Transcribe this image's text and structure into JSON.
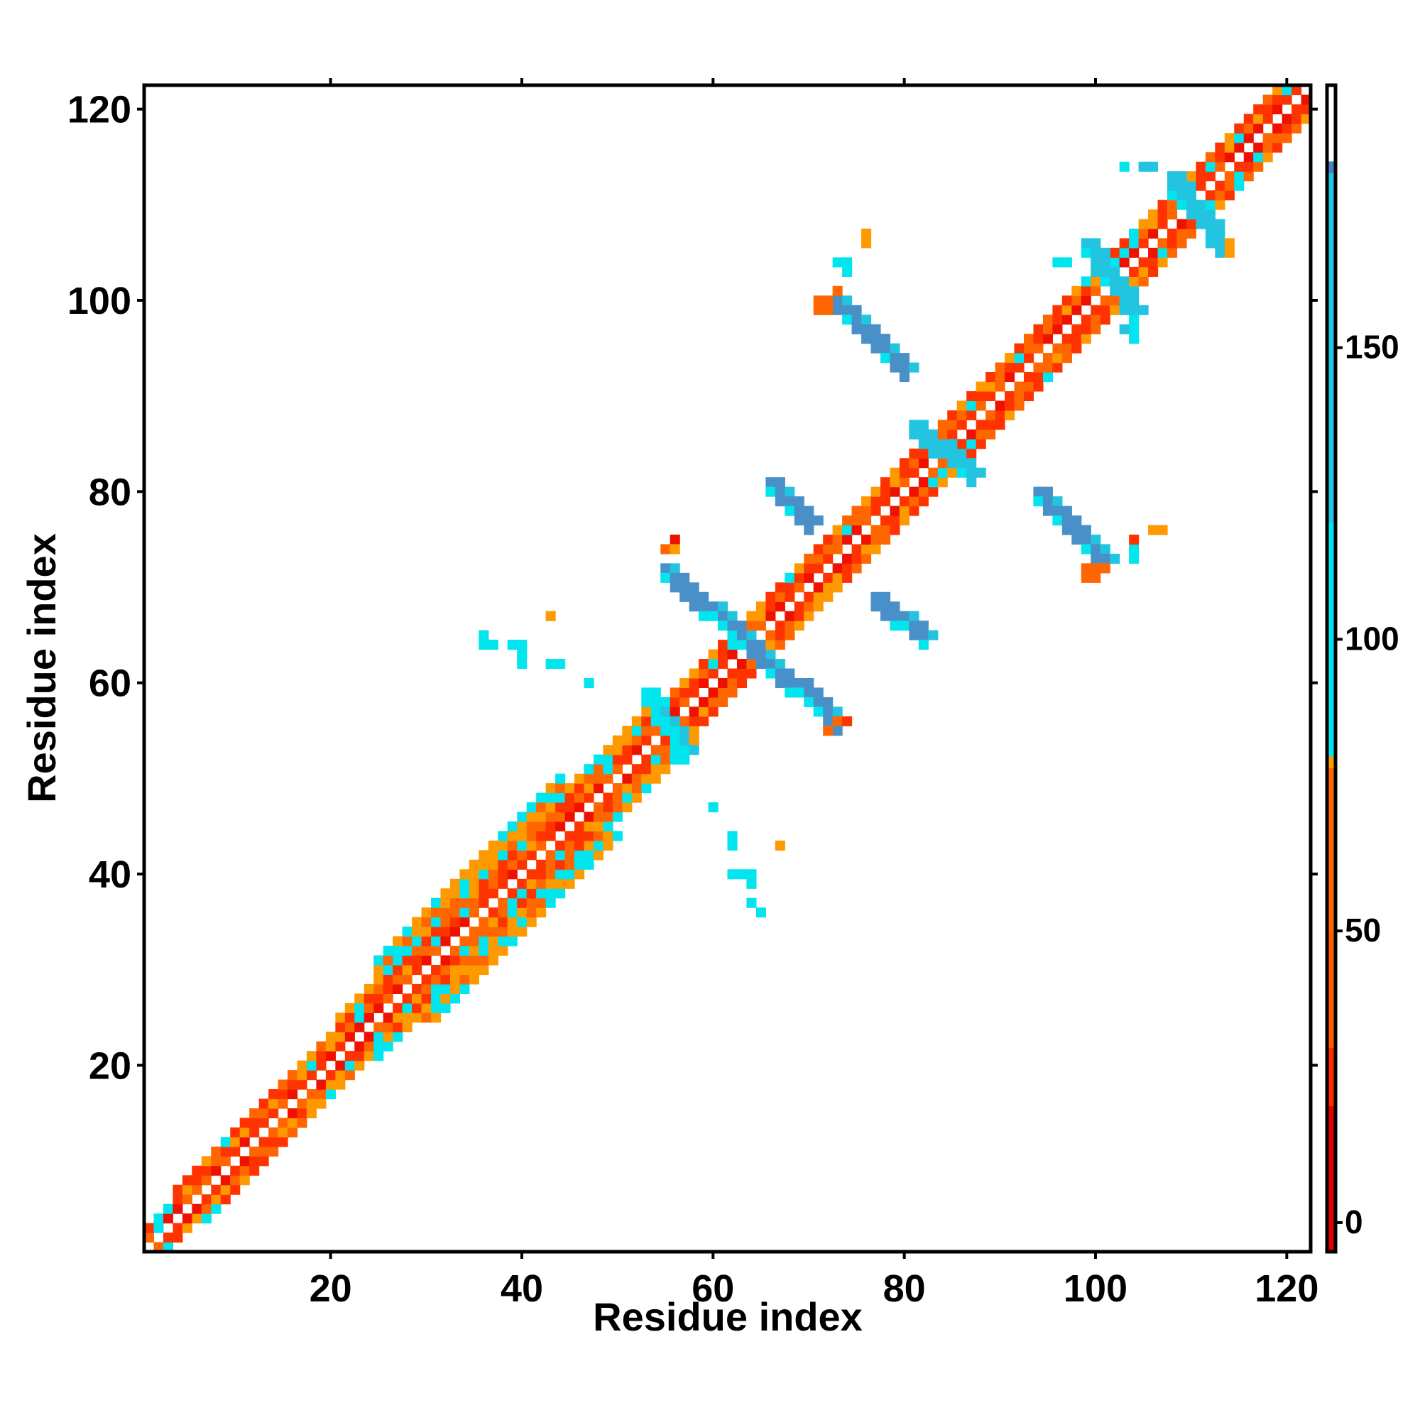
{
  "chart_data": {
    "type": "heatmap",
    "title": "",
    "xlabel": "Residue index",
    "ylabel": "Residue index",
    "xlim": [
      1,
      122
    ],
    "ylim": [
      1,
      122
    ],
    "x_ticks": [
      20,
      40,
      60,
      80,
      100,
      120
    ],
    "y_ticks": [
      20,
      40,
      60,
      80,
      100,
      120
    ],
    "colorbar": {
      "ticks": [
        0,
        50,
        100,
        150
      ],
      "range": [
        -5,
        195
      ],
      "stops": [
        {
          "value": -5,
          "color": "#e00000"
        },
        {
          "value": 20,
          "color": "#ff2a00"
        },
        {
          "value": 30,
          "color": "#ff5a00"
        },
        {
          "value": 50,
          "color": "#ff6600"
        },
        {
          "value": 78,
          "color": "#ff9900"
        },
        {
          "value": 80,
          "color": "#00e5ee"
        },
        {
          "value": 120,
          "color": "#22c6e0"
        },
        {
          "value": 180,
          "color": "#4a7fc0"
        },
        {
          "value": 182,
          "color": "#ffffff"
        },
        {
          "value": 195,
          "color": "#ffffff"
        }
      ]
    },
    "palette": {
      "red": "#ee1100",
      "red_orange": "#ff3300",
      "orange": "#ff6600",
      "light_orange": "#ff9900",
      "cyan": "#00e5ee",
      "light_blue": "#22c4e0",
      "steel_blue": "#4a90c8"
    },
    "diagonal_bands": [
      {
        "from": 1,
        "to": 5,
        "half_width": 2
      },
      {
        "from": 5,
        "to": 22,
        "half_width": 3
      },
      {
        "from": 22,
        "to": 27,
        "half_width": 4
      },
      {
        "from": 27,
        "to": 47,
        "half_width": 6
      },
      {
        "from": 47,
        "to": 56,
        "half_width": 4
      },
      {
        "from": 56,
        "to": 122,
        "half_width": 3
      }
    ],
    "off_diagonal_features": [
      {
        "x": [
          55,
          64
        ],
        "y": [
          72,
          64
        ],
        "color": "steel_blue"
      },
      {
        "x": [
          65,
          73
        ],
        "y": [
          63,
          56
        ],
        "color": "steel_blue"
      },
      {
        "x": [
          66,
          70
        ],
        "y": [
          81,
          77
        ],
        "color": "steel_blue"
      },
      {
        "x": [
          77,
          82
        ],
        "y": [
          69,
          65
        ],
        "color": "steel_blue"
      },
      {
        "x": [
          94,
          101
        ],
        "y": [
          80,
          73
        ],
        "color": "steel_blue"
      },
      {
        "x": [
          73,
          80
        ],
        "y": [
          100,
          93
        ],
        "color": "steel_blue"
      },
      {
        "x": [
          81,
          87
        ],
        "y": [
          87,
          82
        ],
        "color": "light_blue"
      },
      {
        "x": [
          99,
          104
        ],
        "y": [
          106,
          99
        ],
        "color": "light_blue"
      },
      {
        "x": [
          108,
          113
        ],
        "y": [
          113,
          106
        ],
        "color": "light_blue"
      },
      {
        "x": [
          53,
          57
        ],
        "y": [
          59,
          53
        ],
        "color": "cyan"
      }
    ],
    "scatter_cells": [
      {
        "x": 36,
        "y": 65,
        "color": "cyan"
      },
      {
        "x": 36,
        "y": 64,
        "color": "cyan"
      },
      {
        "x": 37,
        "y": 64,
        "color": "cyan"
      },
      {
        "x": 39,
        "y": 64,
        "color": "cyan"
      },
      {
        "x": 40,
        "y": 64,
        "color": "cyan"
      },
      {
        "x": 40,
        "y": 63,
        "color": "cyan"
      },
      {
        "x": 40,
        "y": 62,
        "color": "cyan"
      },
      {
        "x": 43,
        "y": 62,
        "color": "cyan"
      },
      {
        "x": 44,
        "y": 62,
        "color": "cyan"
      },
      {
        "x": 43,
        "y": 67,
        "color": "light_orange"
      },
      {
        "x": 47,
        "y": 60,
        "color": "cyan"
      },
      {
        "x": 60,
        "y": 47,
        "color": "cyan"
      },
      {
        "x": 62,
        "y": 44,
        "color": "cyan"
      },
      {
        "x": 62,
        "y": 43,
        "color": "cyan"
      },
      {
        "x": 62,
        "y": 40,
        "color": "cyan"
      },
      {
        "x": 63,
        "y": 40,
        "color": "cyan"
      },
      {
        "x": 64,
        "y": 40,
        "color": "cyan"
      },
      {
        "x": 64,
        "y": 39,
        "color": "cyan"
      },
      {
        "x": 64,
        "y": 37,
        "color": "cyan"
      },
      {
        "x": 65,
        "y": 36,
        "color": "cyan"
      },
      {
        "x": 67,
        "y": 43,
        "color": "light_orange"
      },
      {
        "x": 56,
        "y": 75,
        "color": "red"
      },
      {
        "x": 55,
        "y": 74,
        "color": "orange"
      },
      {
        "x": 56,
        "y": 74,
        "color": "light_orange"
      },
      {
        "x": 74,
        "y": 56,
        "color": "red_orange"
      },
      {
        "x": 73,
        "y": 56,
        "color": "orange"
      },
      {
        "x": 72,
        "y": 55,
        "color": "orange"
      },
      {
        "x": 76,
        "y": 107,
        "color": "light_orange"
      },
      {
        "x": 76,
        "y": 106,
        "color": "light_orange"
      },
      {
        "x": 71,
        "y": 100,
        "color": "orange"
      },
      {
        "x": 72,
        "y": 100,
        "color": "orange"
      },
      {
        "x": 72,
        "y": 99,
        "color": "orange"
      },
      {
        "x": 71,
        "y": 99,
        "color": "orange"
      },
      {
        "x": 73,
        "y": 101,
        "color": "orange"
      },
      {
        "x": 73,
        "y": 104,
        "color": "cyan"
      },
      {
        "x": 74,
        "y": 104,
        "color": "cyan"
      },
      {
        "x": 74,
        "y": 103,
        "color": "cyan"
      },
      {
        "x": 107,
        "y": 76,
        "color": "light_orange"
      },
      {
        "x": 106,
        "y": 76,
        "color": "light_orange"
      },
      {
        "x": 100,
        "y": 72,
        "color": "orange"
      },
      {
        "x": 100,
        "y": 71,
        "color": "orange"
      },
      {
        "x": 99,
        "y": 72,
        "color": "orange"
      },
      {
        "x": 99,
        "y": 71,
        "color": "orange"
      },
      {
        "x": 101,
        "y": 72,
        "color": "orange"
      },
      {
        "x": 104,
        "y": 73,
        "color": "cyan"
      },
      {
        "x": 104,
        "y": 74,
        "color": "cyan"
      },
      {
        "x": 104,
        "y": 75,
        "color": "red_orange"
      },
      {
        "x": 103,
        "y": 114,
        "color": "cyan"
      },
      {
        "x": 105,
        "y": 114,
        "color": "light_blue"
      },
      {
        "x": 106,
        "y": 114,
        "color": "light_blue"
      },
      {
        "x": 114,
        "y": 106,
        "color": "light_orange"
      },
      {
        "x": 114,
        "y": 105,
        "color": "light_orange"
      },
      {
        "x": 113,
        "y": 105,
        "color": "light_blue"
      },
      {
        "x": 96,
        "y": 104,
        "color": "cyan"
      },
      {
        "x": 97,
        "y": 104,
        "color": "cyan"
      },
      {
        "x": 104,
        "y": 97,
        "color": "cyan"
      },
      {
        "x": 104,
        "y": 96,
        "color": "cyan"
      },
      {
        "x": 103,
        "y": 97,
        "color": "light_blue"
      },
      {
        "x": 2,
        "y": 3,
        "color": "cyan"
      },
      {
        "x": 3,
        "y": 1,
        "color": "cyan"
      }
    ]
  }
}
